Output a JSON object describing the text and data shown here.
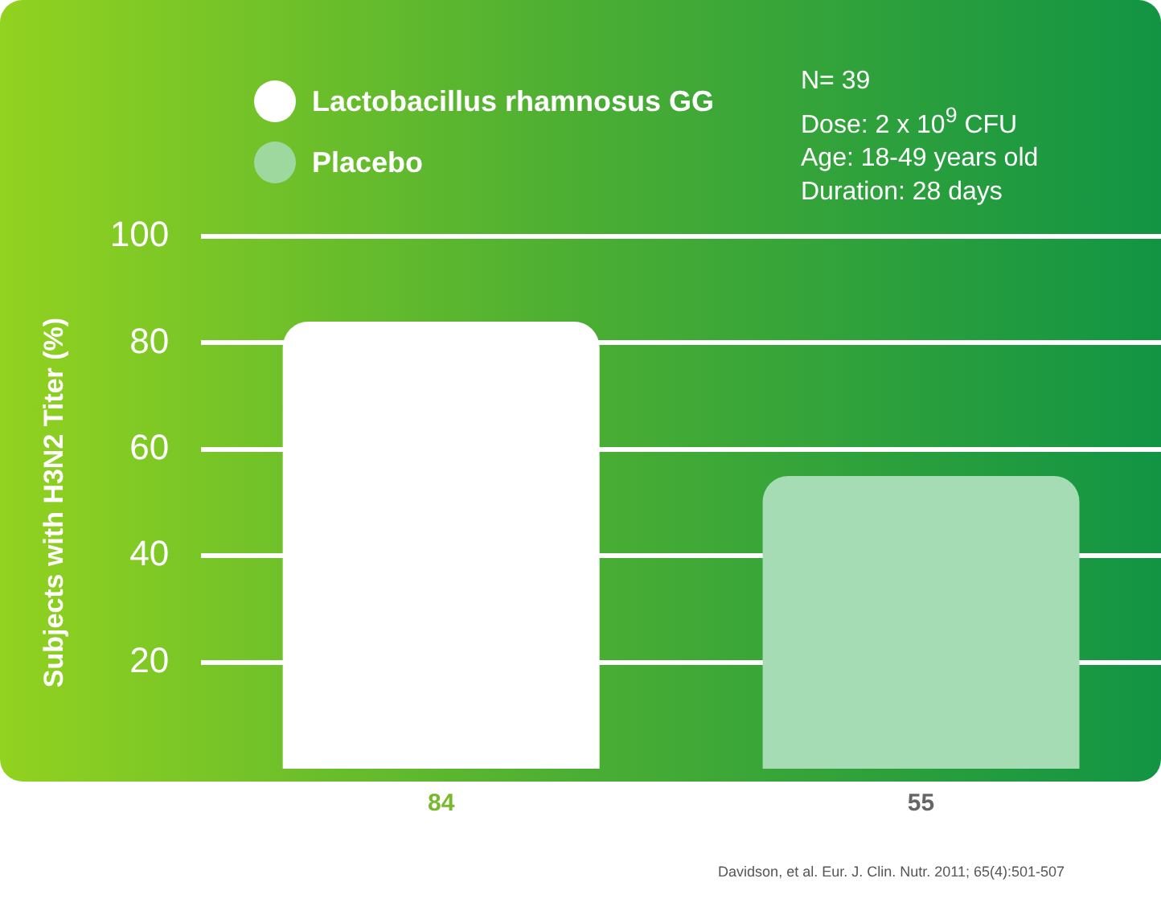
{
  "chart_data": {
    "type": "bar",
    "ylabel": "Subjects with H3N2 Titer (%)",
    "categories": [
      null,
      null
    ],
    "series": [
      {
        "name": "Lactobacillus rhamnosus GG",
        "color": "#ffffff",
        "values": [
          84,
          null
        ]
      },
      {
        "name": "Placebo",
        "color": "#a6dcb4",
        "values": [
          null,
          55
        ]
      }
    ],
    "ylim": [
      0,
      100
    ],
    "yticks": [
      20,
      40,
      60,
      80,
      100
    ],
    "grid": "y",
    "legend": "top left",
    "data_labels": true,
    "annotations": [
      "N= 39",
      "Dose: 2 x 10$^{9}$ CFU",
      "Age: 18-49 years old",
      "Duration: 28 days",
      "Davidson, et al. Eur. J. Clin. Nutr. 2011; 65(4):501-507"
    ]
  }
}
